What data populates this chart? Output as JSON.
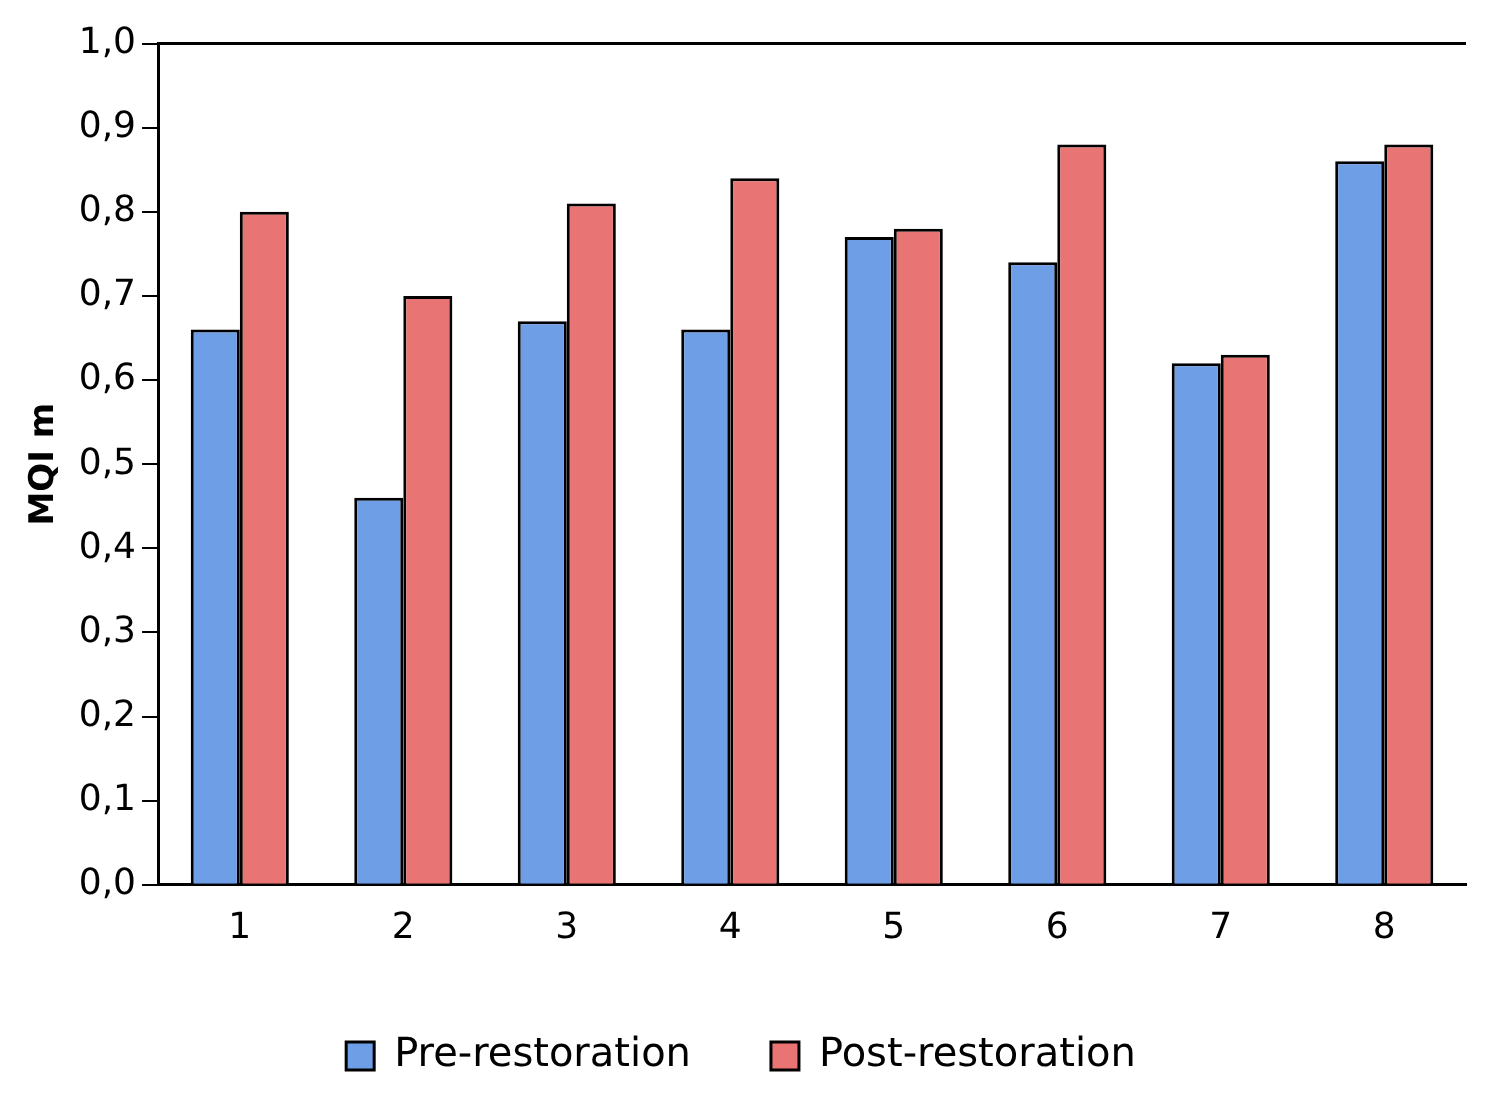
{
  "chart_data": {
    "type": "bar",
    "ylabel": "MQI m",
    "categories": [
      "1",
      "2",
      "3",
      "4",
      "5",
      "6",
      "7",
      "8"
    ],
    "series": [
      {
        "name": "Pre-restoration",
        "color": "#6e9fe6",
        "values": [
          0.66,
          0.46,
          0.67,
          0.66,
          0.77,
          0.74,
          0.62,
          0.86
        ]
      },
      {
        "name": "Post-restoration",
        "color": "#e87474",
        "values": [
          0.8,
          0.7,
          0.81,
          0.84,
          0.78,
          0.88,
          0.63,
          0.88
        ]
      }
    ],
    "ylim": [
      0,
      1
    ],
    "yticks": [
      {
        "value": 0,
        "label": "0,0"
      },
      {
        "value": 0.1,
        "label": "0,1"
      },
      {
        "value": 0.2,
        "label": "0,2"
      },
      {
        "value": 0.3,
        "label": "0,3"
      },
      {
        "value": 0.4,
        "label": "0,4"
      },
      {
        "value": 0.5,
        "label": "0,5"
      },
      {
        "value": 0.6,
        "label": "0,6"
      },
      {
        "value": 0.7,
        "label": "0,7"
      },
      {
        "value": 0.8,
        "label": "0,8"
      },
      {
        "value": 0.9,
        "label": "0,9"
      },
      {
        "value": 1,
        "label": "1,0"
      }
    ],
    "grid": false,
    "legend": "bottom"
  }
}
